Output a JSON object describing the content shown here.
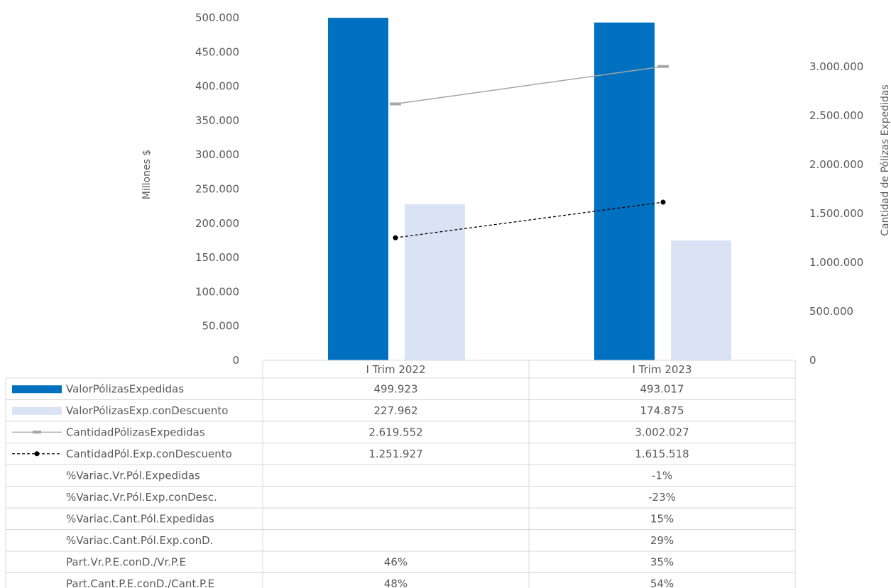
{
  "chart_data": {
    "type": "bar",
    "categories": [
      "I Trim 2022",
      "I Trim 2023"
    ],
    "y_left": {
      "label": "Millones $",
      "min": 0,
      "max": 500000,
      "step": 50000,
      "ticks": [
        "0",
        "50.000",
        "100.000",
        "150.000",
        "200.000",
        "250.000",
        "300.000",
        "350.000",
        "400.000",
        "450.000",
        "500.000"
      ]
    },
    "y_right": {
      "label": "Cantidad de Pólizas Expedidas",
      "min": 0,
      "max": 3500000,
      "step": 500000,
      "ticks": [
        "0",
        "500.000",
        "1.000.000",
        "1.500.000",
        "2.000.000",
        "2.500.000",
        "3.000.000"
      ]
    },
    "series": [
      {
        "name": "ValorPólizasExpedidas",
        "kind": "bar",
        "axis": "left",
        "color": "#0070C0",
        "values": [
          499923,
          493017
        ],
        "labels": [
          "499.923",
          "493.017"
        ]
      },
      {
        "name": "ValorPólizasExp.conDescuento",
        "kind": "bar",
        "axis": "left",
        "color": "#DAE3F3",
        "values": [
          227962,
          174875
        ],
        "labels": [
          "227.962",
          "174.875"
        ]
      },
      {
        "name": "CantidadPólizasExpedidas",
        "kind": "line",
        "axis": "right",
        "color": "#A6A6A6",
        "values": [
          2619552,
          3002027
        ],
        "labels": [
          "2.619.552",
          "3.002.027"
        ]
      },
      {
        "name": "CantidadPól.Exp.conDescuento",
        "kind": "line-dashed",
        "axis": "right",
        "color": "#000000",
        "values": [
          1251927,
          1615518
        ],
        "labels": [
          "1.251.927",
          "1.615.518"
        ]
      }
    ],
    "extra_rows": [
      {
        "name": "%Variac.Vr.Pól.Expedidas",
        "values": [
          "",
          "-1%"
        ]
      },
      {
        "name": "%Variac.Vr.Pól.Exp.conDesc.",
        "values": [
          "",
          "-23%"
        ]
      },
      {
        "name": "%Variac.Cant.Pól.Expedidas",
        "values": [
          "",
          "15%"
        ]
      },
      {
        "name": "%Variac.Cant.Pól.Exp.conD.",
        "values": [
          "",
          "29%"
        ]
      },
      {
        "name": "Part.Vr.P.E.conD./Vr.P.E",
        "values": [
          "46%",
          "35%"
        ]
      },
      {
        "name": "Part.Cant.P.E.conD./Cant.P.E",
        "values": [
          "48%",
          "54%"
        ]
      }
    ]
  }
}
